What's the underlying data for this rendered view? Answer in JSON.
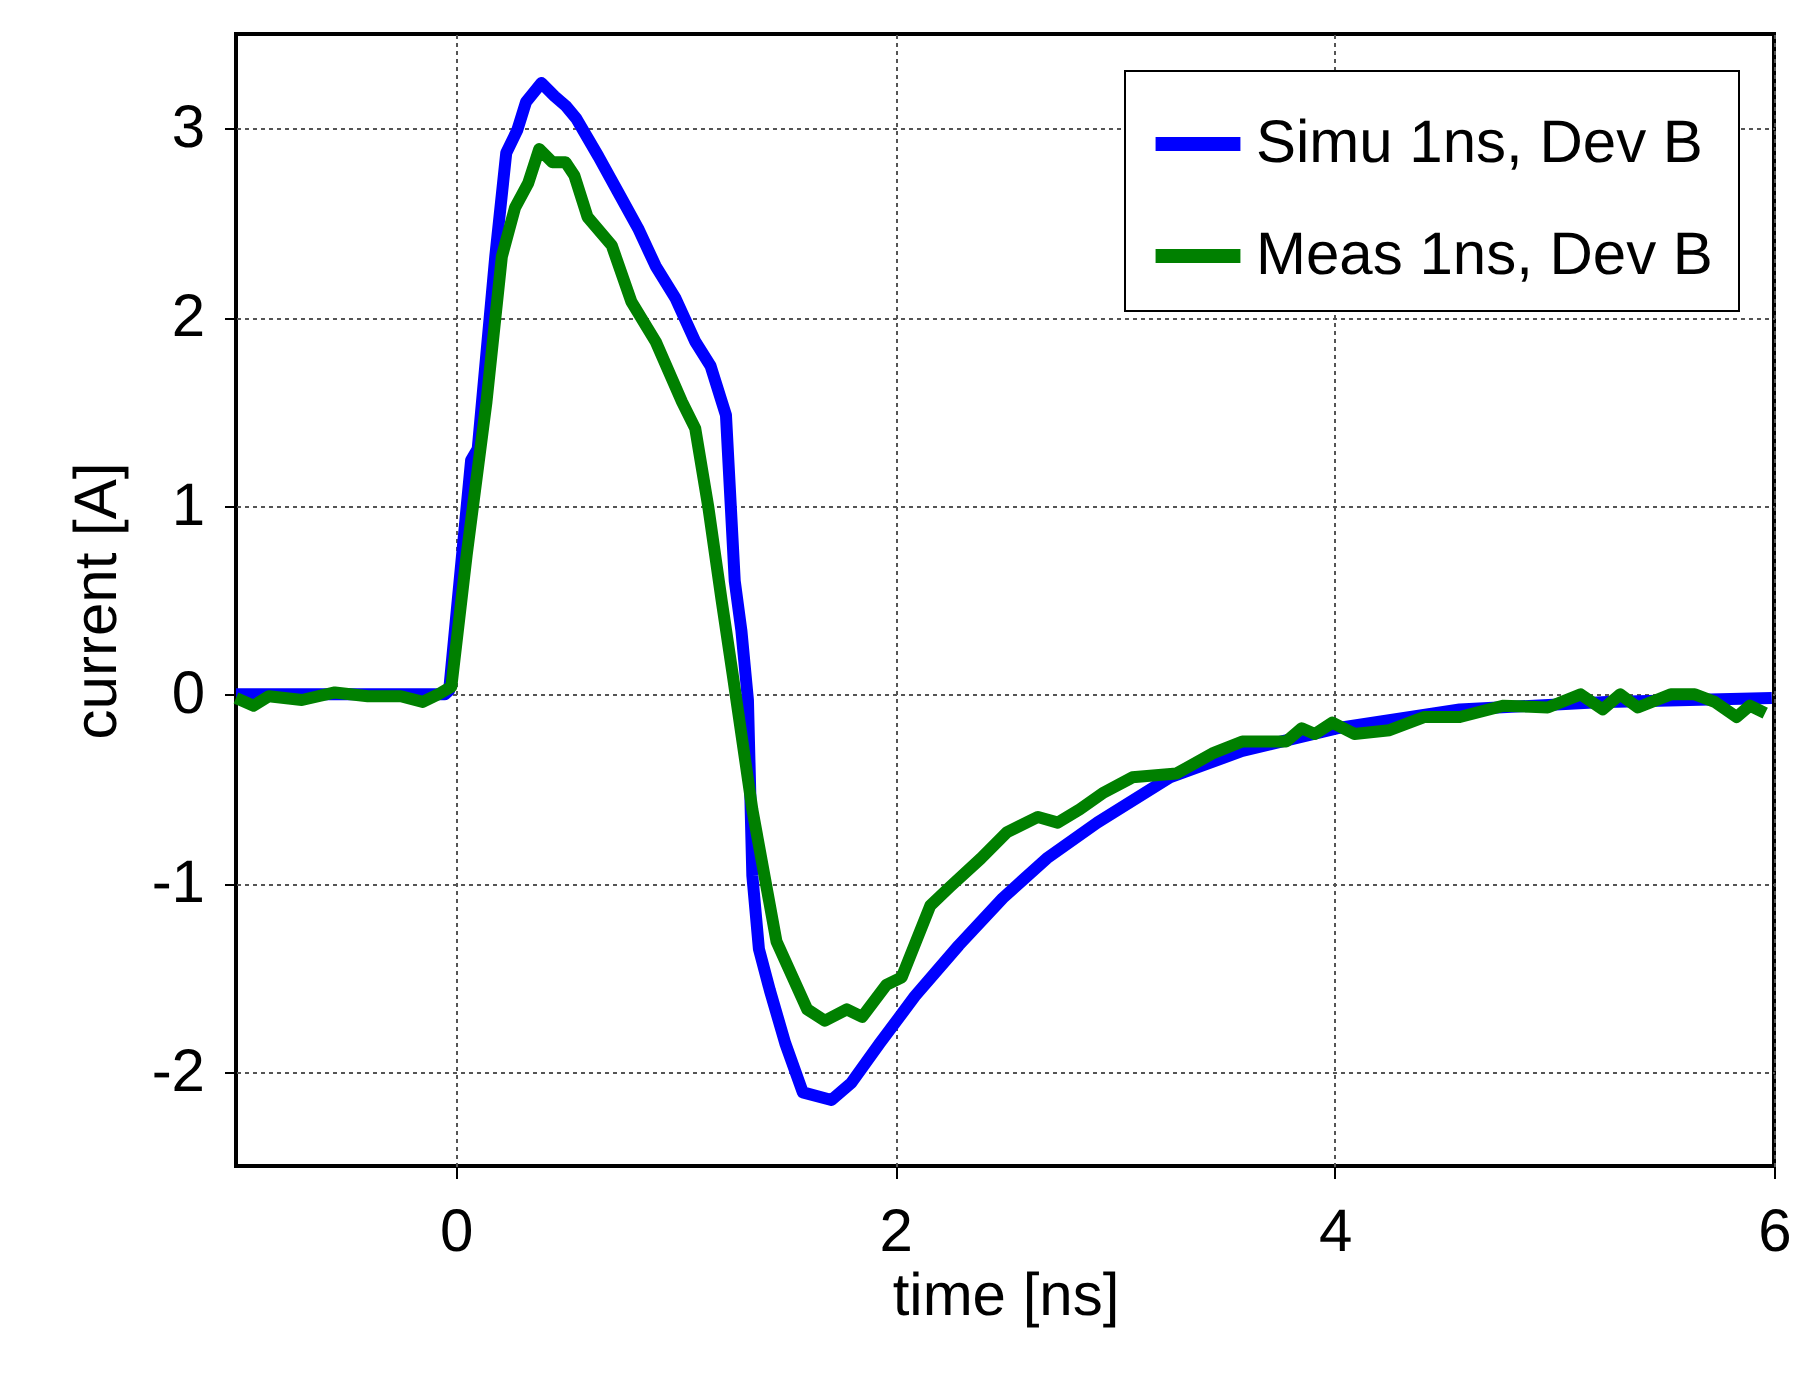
{
  "chart_data": {
    "type": "line",
    "xlabel": "time [ns]",
    "ylabel": "current [A]",
    "xlim": [
      -1,
      6
    ],
    "xticks": [
      0,
      2,
      4,
      6
    ],
    "ylim": [
      -2.5,
      3.5
    ],
    "yticks": [
      -2,
      -1,
      0,
      1,
      2,
      3
    ],
    "grid": true,
    "legend": "top right",
    "line_style": "solid",
    "marker": "none",
    "series": [
      {
        "name": "Simu 1ns, Dev B",
        "color": "#0000ff",
        "x": [
          -1,
          -0.5,
          -0.05,
          -0.03,
          0.07,
          0.1,
          0.18,
          0.23,
          0.28,
          0.32,
          0.39,
          0.45,
          0.5,
          0.55,
          0.65,
          0.74,
          0.83,
          0.91,
          1.0,
          1.09,
          1.16,
          1.23,
          1.27,
          1.3,
          1.33,
          1.35,
          1.38,
          1.43,
          1.5,
          1.58,
          1.71,
          1.8,
          1.93,
          2.09,
          2.29,
          2.49,
          2.69,
          2.92,
          3.25,
          3.58,
          4.01,
          4.57,
          5.24,
          5.99
        ],
        "values": [
          0.0,
          0.0,
          0.0,
          0.02,
          1.24,
          1.3,
          2.32,
          2.87,
          2.99,
          3.14,
          3.24,
          3.17,
          3.12,
          3.05,
          2.85,
          2.66,
          2.47,
          2.27,
          2.1,
          1.87,
          1.74,
          1.48,
          0.6,
          0.34,
          -0.03,
          -0.96,
          -1.35,
          -1.57,
          -1.85,
          -2.11,
          -2.15,
          -2.06,
          -1.85,
          -1.6,
          -1.33,
          -1.08,
          -0.87,
          -0.68,
          -0.44,
          -0.3,
          -0.18,
          -0.08,
          -0.04,
          -0.02
        ]
      },
      {
        "name": "Meas 1ns, Dev B",
        "color": "#008000",
        "x": [
          -1,
          -0.92,
          -0.85,
          -0.7,
          -0.55,
          -0.4,
          -0.25,
          -0.15,
          -0.08,
          -0.02,
          0.05,
          0.14,
          0.21,
          0.27,
          0.33,
          0.38,
          0.44,
          0.5,
          0.54,
          0.6,
          0.71,
          0.8,
          0.91,
          1.03,
          1.09,
          1.15,
          1.21,
          1.26,
          1.35,
          1.46,
          1.6,
          1.68,
          1.78,
          1.85,
          1.96,
          2.03,
          2.16,
          2.25,
          2.39,
          2.51,
          2.65,
          2.74,
          2.84,
          2.95,
          3.08,
          3.28,
          3.45,
          3.58,
          3.78,
          3.85,
          3.91,
          3.99,
          4.09,
          4.25,
          4.41,
          4.57,
          4.77,
          4.97,
          5.12,
          5.22,
          5.3,
          5.38,
          5.53,
          5.64,
          5.73,
          5.83,
          5.89,
          5.96
        ],
        "values": [
          -0.02,
          -0.06,
          -0.01,
          -0.03,
          0.01,
          -0.01,
          -0.01,
          -0.04,
          0.0,
          0.04,
          0.74,
          1.55,
          2.32,
          2.58,
          2.71,
          2.89,
          2.82,
          2.82,
          2.75,
          2.53,
          2.38,
          2.08,
          1.87,
          1.55,
          1.41,
          0.99,
          0.5,
          0.11,
          -0.61,
          -1.31,
          -1.67,
          -1.73,
          -1.67,
          -1.71,
          -1.54,
          -1.5,
          -1.12,
          -1.02,
          -0.87,
          -0.73,
          -0.65,
          -0.68,
          -0.61,
          -0.52,
          -0.44,
          -0.42,
          -0.31,
          -0.25,
          -0.25,
          -0.18,
          -0.21,
          -0.15,
          -0.21,
          -0.19,
          -0.12,
          -0.12,
          -0.06,
          -0.07,
          0.0,
          -0.08,
          0.0,
          -0.07,
          0.0,
          0.0,
          -0.04,
          -0.12,
          -0.06,
          -0.1
        ]
      }
    ]
  }
}
